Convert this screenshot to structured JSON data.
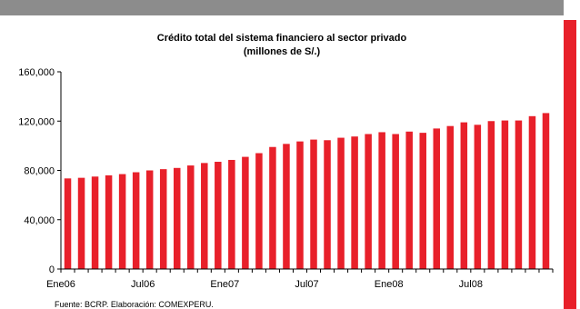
{
  "colors": {
    "bar": "#e8202a",
    "top_bar": "#8c8c8c",
    "right_bar": "#e8202a",
    "axis": "#000000"
  },
  "chart_data": {
    "type": "bar",
    "title": "Crédito total del sistema financiero al sector privado",
    "subtitle": "(millones de S/.)",
    "xlabel": "",
    "ylabel": "",
    "ylim": [
      0,
      160000
    ],
    "yticks": [
      "0",
      "40,000",
      "80,000",
      "120,000",
      "160,000"
    ],
    "ytick_values": [
      0,
      40000,
      80000,
      120000,
      160000
    ],
    "x_tick_labels": [
      {
        "label": "Ene06",
        "index": 0
      },
      {
        "label": "Jul06",
        "index": 6
      },
      {
        "label": "Ene07",
        "index": 12
      },
      {
        "label": "Jul07",
        "index": 18
      },
      {
        "label": "Ene08",
        "index": 24
      },
      {
        "label": "Jul08",
        "index": 30
      }
    ],
    "grid": false,
    "legend": "none",
    "values": [
      73500,
      74000,
      75000,
      76000,
      77000,
      78500,
      80000,
      81000,
      82000,
      84000,
      86000,
      87000,
      88500,
      91000,
      94000,
      99000,
      101500,
      103500,
      105000,
      104500,
      106500,
      107500,
      109500,
      111000,
      109500,
      111500,
      110500,
      114000,
      116000,
      119000,
      117000,
      120000,
      120500,
      120500,
      124000,
      126500
    ]
  },
  "footer": {
    "source": "Fuente: BCRP. Elaboración: COMEXPERU."
  }
}
